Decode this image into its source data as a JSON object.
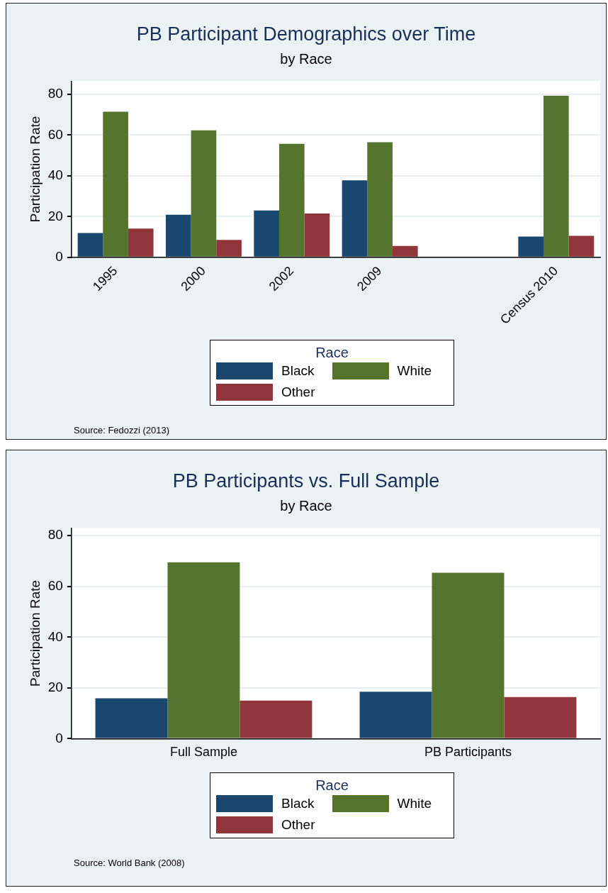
{
  "chart_data": [
    {
      "type": "bar",
      "title": "PB Participant Demographics over Time",
      "subtitle": "by Race",
      "ylabel": "Participation Rate",
      "legend_title": "Race",
      "categories": [
        "1995",
        "2000",
        "2002",
        "2009",
        null,
        "Census 2010"
      ],
      "series": [
        {
          "name": "Black",
          "color": "#1a476f",
          "values": [
            11.9,
            20.9,
            23.0,
            37.8,
            null,
            10.2
          ]
        },
        {
          "name": "White",
          "color": "#55752f",
          "values": [
            71.5,
            62.3,
            55.7,
            56.5,
            null,
            79.3
          ]
        },
        {
          "name": "Other",
          "color": "#90353b",
          "values": [
            14.1,
            8.5,
            21.5,
            5.6,
            null,
            10.5
          ]
        }
      ],
      "ylim": [
        0,
        86.5
      ],
      "yticks": [
        0,
        20,
        40,
        60,
        80
      ],
      "grid": "y",
      "legend": "bottom",
      "annotations": [
        "Source: Fedozzi (2013)"
      ]
    },
    {
      "type": "bar",
      "title": "PB Participants vs. Full Sample",
      "subtitle": "by Race",
      "ylabel": "Participation Rate",
      "legend_title": "Race",
      "categories": [
        "Full Sample",
        "PB Participants"
      ],
      "series": [
        {
          "name": "Black",
          "color": "#1a476f",
          "values": [
            15.9,
            18.5
          ]
        },
        {
          "name": "White",
          "color": "#55752f",
          "values": [
            69.5,
            65.4
          ]
        },
        {
          "name": "Other",
          "color": "#90353b",
          "values": [
            15.0,
            16.4
          ]
        }
      ],
      "ylim": [
        0,
        83
      ],
      "yticks": [
        0,
        20,
        40,
        60,
        80
      ],
      "grid": "y",
      "legend": "bottom",
      "annotations": [
        "Source: World Bank (2008)"
      ]
    }
  ]
}
